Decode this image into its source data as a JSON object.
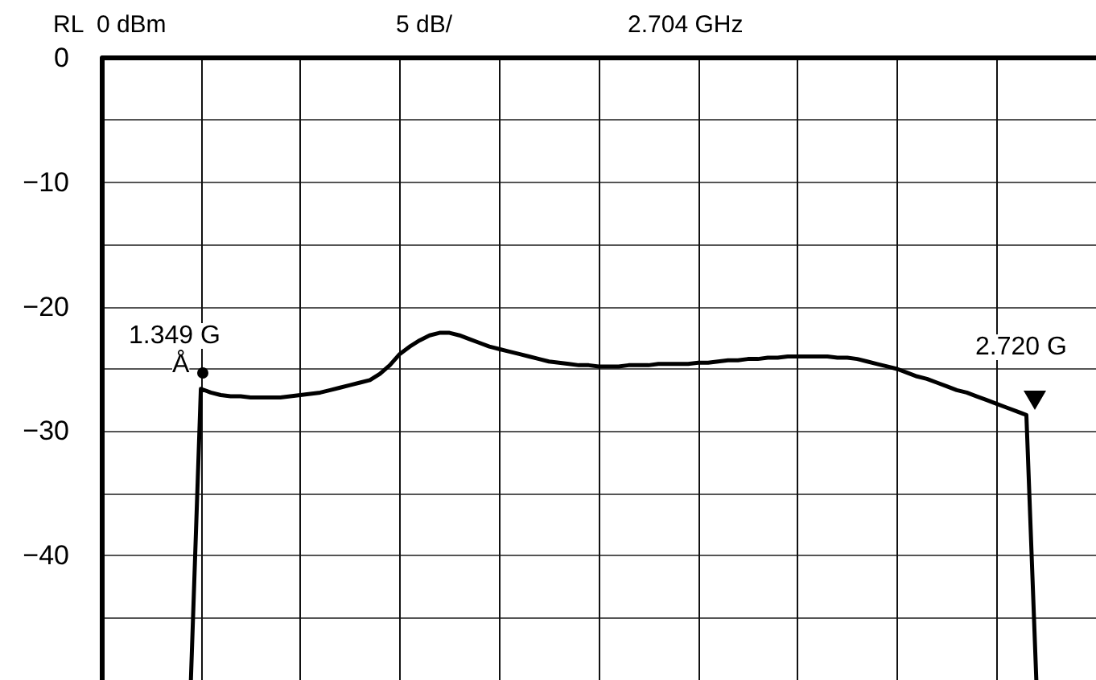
{
  "chart_data": {
    "type": "line",
    "annotations": [
      "RL  0 dBm",
      "5 dB/",
      "2.704 GHz",
      "1.349 G",
      "Å",
      "2.720 G"
    ],
    "categories": [
      null,
      null,
      null,
      null,
      null,
      null,
      null,
      null,
      null,
      null,
      null,
      null,
      null,
      null,
      null,
      null,
      null,
      null,
      null,
      null,
      null,
      null,
      null,
      null,
      null,
      null,
      null,
      null,
      null,
      null,
      null,
      null,
      null,
      null,
      null,
      null,
      null,
      null,
      null,
      null,
      null,
      null,
      null,
      null,
      null,
      null,
      null,
      null,
      null,
      null,
      null,
      null,
      null,
      null,
      null,
      null,
      null,
      null,
      null,
      null,
      null,
      null,
      null,
      null,
      null,
      null,
      null,
      null,
      null,
      null,
      null,
      null,
      null,
      null,
      null,
      null,
      null,
      null,
      null,
      null,
      null,
      null,
      null,
      null,
      null,
      null,
      null,
      null,
      null,
      null,
      null,
      null,
      null,
      null,
      null,
      null,
      null,
      null,
      null,
      null,
      null
    ],
    "ylim": [
      -50,
      0
    ],
    "yticks": [
      0,
      {
        "value": -5,
        "label": null
      },
      {
        "value": -10,
        "label": "−10"
      },
      {
        "value": -15,
        "label": null
      },
      {
        "value": -20,
        "label": "−20"
      },
      {
        "value": -25,
        "label": null
      },
      {
        "value": -30,
        "label": "−30"
      },
      {
        "value": -35,
        "label": null
      },
      {
        "value": -40,
        "label": "−40"
      },
      {
        "value": -45,
        "label": null
      },
      {
        "value": -50,
        "label": null
      }
    ],
    "tick_labels": "y",
    "grid": true,
    "line_style": "solid",
    "series": [
      {
        "color": "#000000",
        "values": [
          null,
          null,
          null,
          null,
          null,
          null,
          null,
          null,
          null,
          -50,
          -26.6,
          -26.9,
          -27.1,
          -27.2,
          -27.2,
          -27.3,
          -27.3,
          -27.3,
          -27.3,
          -27.2,
          -27.1,
          -27.0,
          -26.9,
          -26.7,
          -26.5,
          -26.3,
          -26.1,
          -25.9,
          -25.4,
          -24.7,
          -23.8,
          -23.2,
          -22.7,
          -22.3,
          -22.1,
          -22.1,
          -22.3,
          -22.6,
          -22.9,
          -23.2,
          -23.4,
          -23.6,
          -23.8,
          -24.0,
          -24.2,
          -24.4,
          -24.5,
          -24.6,
          -24.7,
          -24.7,
          -24.8,
          -24.8,
          -24.8,
          -24.7,
          -24.7,
          -24.7,
          -24.6,
          -24.6,
          -24.6,
          -24.6,
          -24.5,
          -24.5,
          -24.4,
          -24.3,
          -24.3,
          -24.2,
          -24.2,
          -24.1,
          -24.1,
          -24.0,
          -24.0,
          -24.0,
          -24.0,
          -24.0,
          -24.1,
          -24.1,
          -24.2,
          -24.4,
          -24.6,
          -24.8,
          -25.0,
          -25.3,
          -25.6,
          -25.8,
          -26.1,
          -26.4,
          -26.7,
          -26.9,
          -27.2,
          -27.5,
          -27.8,
          -28.1,
          -28.4,
          -28.7,
          -50,
          null,
          null,
          null,
          null,
          null,
          null
        ]
      }
    ]
  }
}
